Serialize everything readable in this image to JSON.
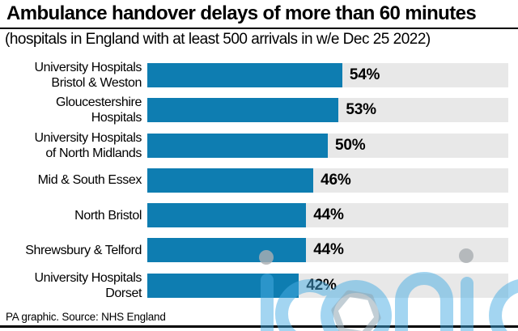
{
  "title": "Ambulance handover delays of more than 60 minutes",
  "subtitle": "(hospitals in England with at least 500 arrivals in w/e Dec 25 2022)",
  "source": "PA graphic. Source: NHS England",
  "watermark": {
    "text": "iconic"
  },
  "colors": {
    "bar": "#0e7db1",
    "track": "#e8e8e8",
    "rule": "#000000",
    "watermark_blue": "#49ade4",
    "watermark_hex": "#8fa6b2",
    "watermark_gray": "#a9aeb2"
  },
  "chart_data": {
    "type": "bar",
    "orientation": "horizontal",
    "title": "Ambulance handover delays of more than 60 minutes",
    "subtitle": "(hospitals in England with at least 500 arrivals in w/e Dec 25 2022)",
    "categories": [
      [
        "University Hospitals",
        "Bristol & Weston"
      ],
      [
        "Gloucestershire",
        "Hospitals"
      ],
      [
        "University Hospitals",
        "of North Midlands"
      ],
      [
        "Mid & South Essex"
      ],
      [
        "North Bristol"
      ],
      [
        "Shrewsbury & Telford"
      ],
      [
        "University Hospitals",
        "Dorset"
      ]
    ],
    "values": [
      54,
      53,
      50,
      46,
      44,
      44,
      42
    ],
    "value_suffix": "%",
    "xlim": [
      0,
      100
    ],
    "grid": false,
    "legend": false,
    "value_labels": "outside-end",
    "source": "NHS England"
  }
}
